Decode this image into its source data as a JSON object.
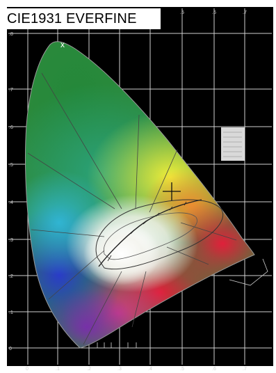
{
  "title": "CIE1931 EVERFINE",
  "header_mark": "x",
  "colors": {
    "background": "#000000",
    "grid": "#e8e8e8",
    "frame": "#ffffff"
  },
  "axis": {
    "x_ticks": [
      "0",
      ".1",
      ".2",
      ".3",
      ".4",
      ".5",
      ".6",
      ".7"
    ],
    "y_ticks": [
      ".8",
      ".7",
      ".6",
      ".5",
      ".4",
      ".3",
      ".2",
      ".1",
      "0"
    ]
  }
}
